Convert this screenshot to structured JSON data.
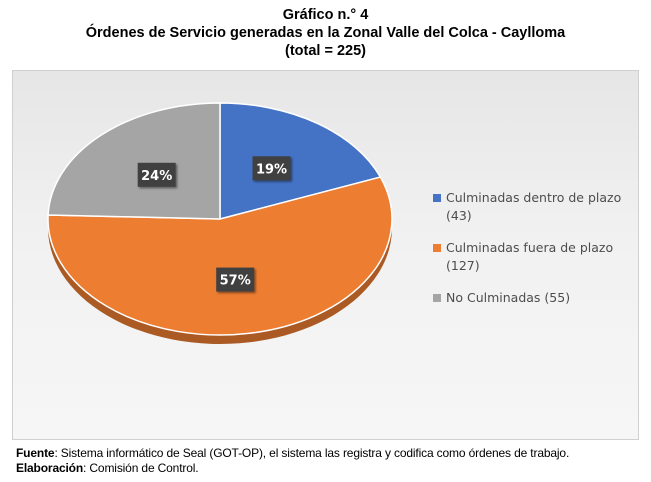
{
  "title": {
    "line1": "Gráfico n.° 4",
    "line2": "Órdenes de Servicio generadas en la Zonal Valle del Colca - Caylloma",
    "line3": "(total = 225)"
  },
  "chart_data": {
    "type": "pie",
    "legend_position": "right",
    "slices": [
      {
        "name": "Culminadas dentro de plazo",
        "count_label": "(43)",
        "value": 43,
        "percent_label": "19%",
        "color": "#4472c4"
      },
      {
        "name": "Culminadas fuera de plazo",
        "count_label": "(127)",
        "value": 127,
        "percent_label": "57%",
        "color": "#ed7d31"
      },
      {
        "name": "No Culminadas (55)",
        "count_label": "",
        "value": 55,
        "percent_label": "24%",
        "color": "#a5a5a5"
      }
    ]
  },
  "footer": {
    "source_label": "Fuente",
    "source_text": ": Sistema informático de Seal (GOT-OP), el sistema las registra y codifica como órdenes de trabajo.",
    "elaboration_label": "Elaboración",
    "elaboration_text": ": Comisión de Control."
  }
}
